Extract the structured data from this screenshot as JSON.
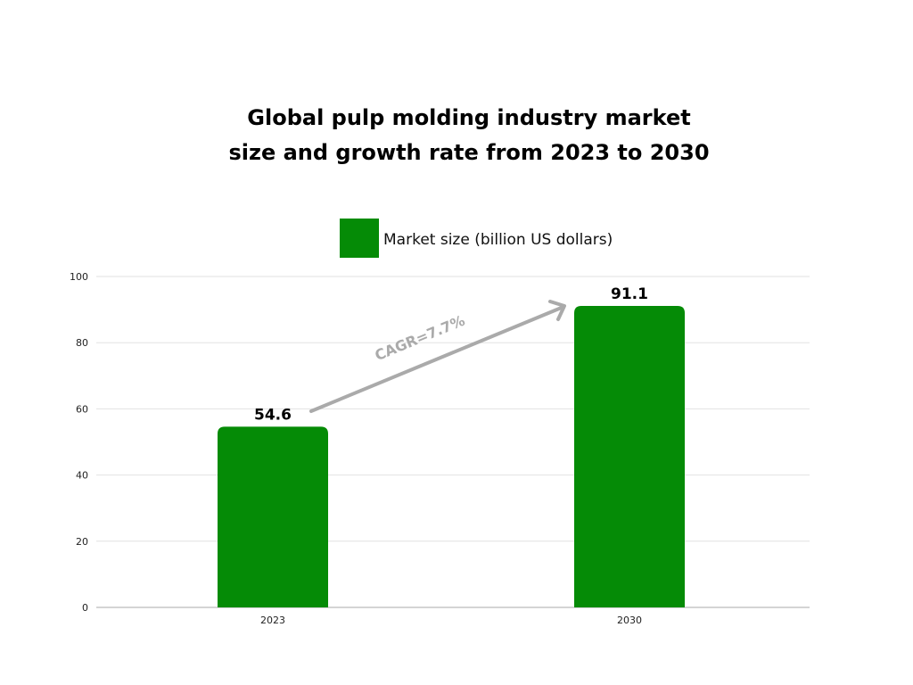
{
  "chart_data": {
    "type": "bar",
    "title_lines": [
      "Global pulp molding industry market",
      "size and growth rate from 2023 to 2030"
    ],
    "categories": [
      "2023",
      "2030"
    ],
    "series": [
      {
        "name": "Market size (billion US dollars)",
        "values": [
          54.6,
          91.1
        ],
        "color": "#058b06"
      }
    ],
    "data_labels": [
      "54.6",
      "91.1"
    ],
    "ylim": [
      0,
      100
    ],
    "yticks": [
      0,
      20,
      40,
      60,
      80,
      100
    ],
    "grid": true,
    "legend_position": "top-center",
    "annotation": {
      "text": "CAGR=7.7%",
      "color": "#aaaaaa",
      "type": "arrow",
      "from": "2023",
      "to": "2030"
    }
  }
}
